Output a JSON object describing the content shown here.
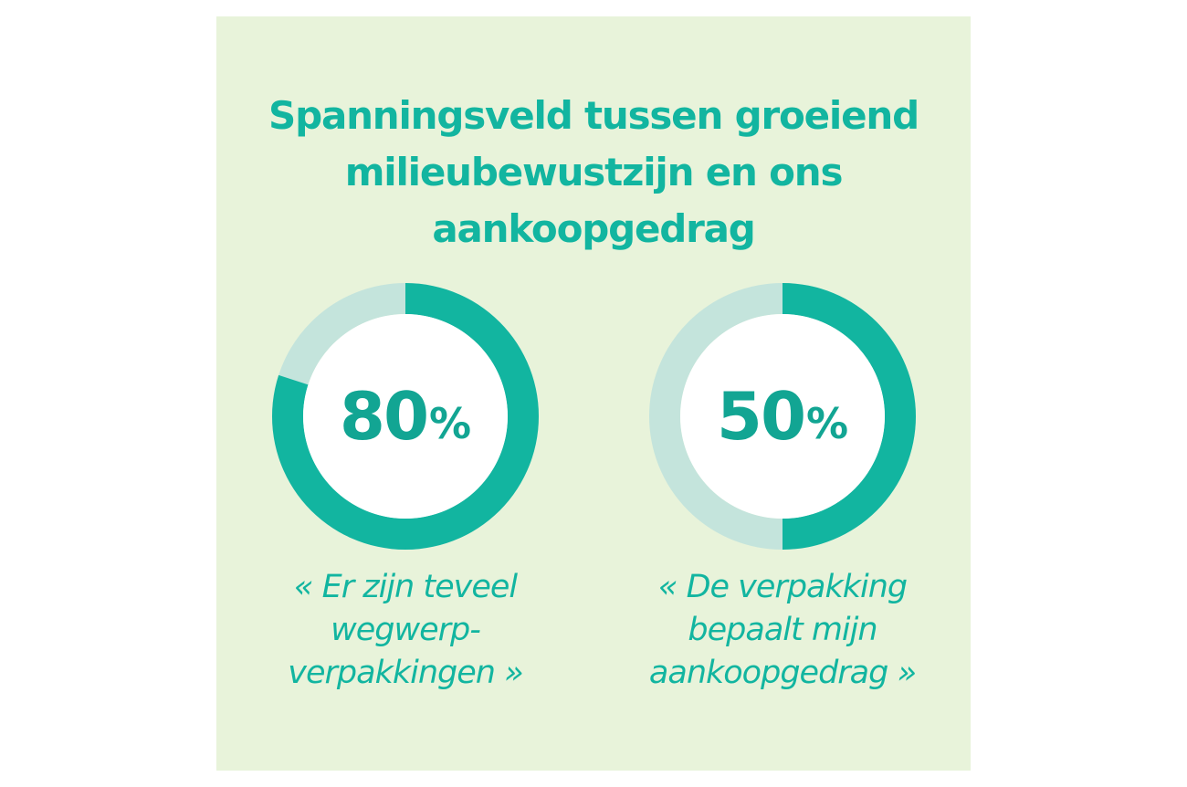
{
  "title": {
    "lines": [
      "Spanningsveld tussen groeiend",
      "milieubewustzijn en ons",
      "aankoopgedrag"
    ]
  },
  "colors": {
    "background": "#e8f3da",
    "accent": "#12b5a0",
    "track": "#c4e4dc",
    "inner": "#ffffff"
  },
  "chart_data": [
    {
      "type": "pie",
      "variant": "donut",
      "value": 80,
      "max": 100,
      "label": "80",
      "unit": "%",
      "caption_lines": [
        "« Er zijn teveel",
        "wegwerp-",
        "verpakkingen »"
      ]
    },
    {
      "type": "pie",
      "variant": "donut",
      "value": 50,
      "max": 100,
      "label": "50",
      "unit": "%",
      "caption_lines": [
        "« De verpakking",
        "bepaalt mijn",
        "aankoopgedrag »"
      ]
    }
  ]
}
